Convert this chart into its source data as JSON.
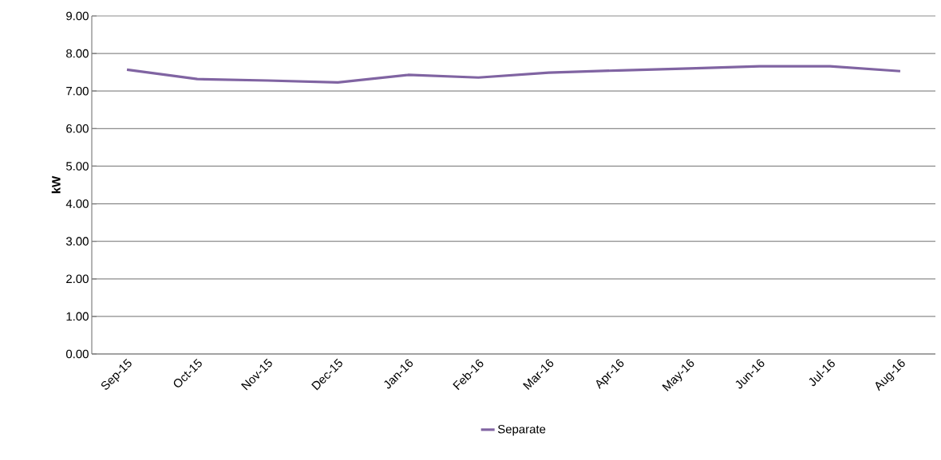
{
  "chart_data": {
    "type": "line",
    "ylabel": "kW",
    "categories": [
      "Sep-15",
      "Oct-15",
      "Nov-15",
      "Dec-15",
      "Jan-16",
      "Feb-16",
      "Mar-16",
      "Apr-16",
      "May-16",
      "Jun-16",
      "Jul-16",
      "Aug-16"
    ],
    "series": [
      {
        "name": "Separate",
        "color": "#8064a2",
        "values": [
          7.57,
          7.32,
          7.28,
          7.23,
          7.43,
          7.36,
          7.49,
          7.55,
          7.6,
          7.66,
          7.66,
          7.53
        ]
      }
    ],
    "ylim": [
      0,
      9
    ],
    "yticks": [
      {
        "value": 0,
        "label": "0.00"
      },
      {
        "value": 1,
        "label": "1.00"
      },
      {
        "value": 2,
        "label": "2.00"
      },
      {
        "value": 3,
        "label": "3.00"
      },
      {
        "value": 4,
        "label": "4.00"
      },
      {
        "value": 5,
        "label": "5.00"
      },
      {
        "value": 6,
        "label": "6.00"
      },
      {
        "value": 7,
        "label": "7.00"
      },
      {
        "value": 8,
        "label": "8.00"
      },
      {
        "value": 9,
        "label": "9.00"
      }
    ],
    "grid": "y",
    "legend": "bottom",
    "marker": "none",
    "line_style": "solid"
  }
}
